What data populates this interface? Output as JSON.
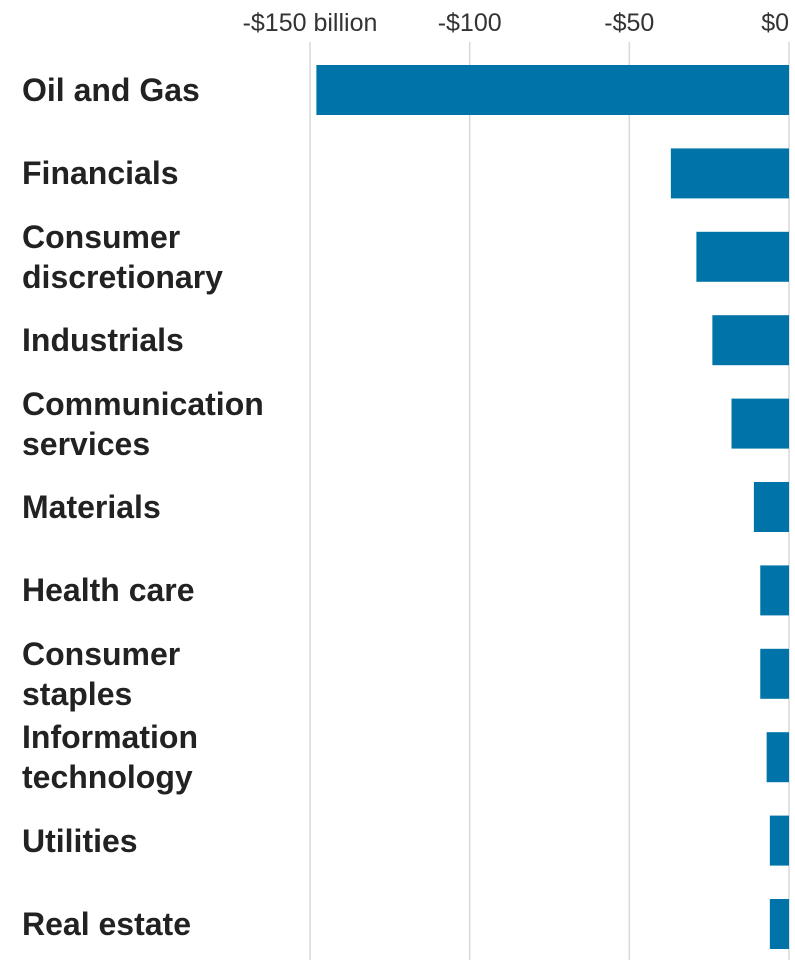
{
  "chart_data": {
    "type": "barh",
    "categories": [
      "Oil and Gas",
      "Financials",
      "Consumer discretionary",
      "Industrials",
      "Communication services",
      "Materials",
      "Health care",
      "Consumer staples",
      "Information technology",
      "Utilities",
      "Real estate"
    ],
    "values": [
      -148,
      -37,
      -29,
      -24,
      -18,
      -11,
      -9,
      -9,
      -7,
      -6,
      -6
    ],
    "color": "#0074a8",
    "xlim": [
      -150,
      0
    ],
    "xticks": [
      {
        "value": -150,
        "label": "-$150 billion"
      },
      {
        "value": -100,
        "label": "-$100"
      },
      {
        "value": -50,
        "label": "-$50"
      },
      {
        "value": 0,
        "label": "$0"
      }
    ],
    "grid": true
  }
}
